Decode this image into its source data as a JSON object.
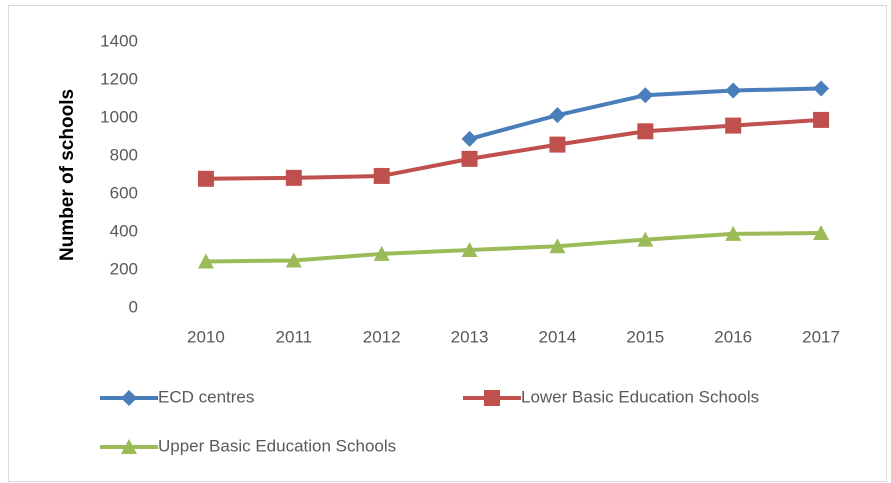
{
  "chart_data": {
    "type": "line",
    "y_label": "Number of schools",
    "categories": [
      "2010",
      "2011",
      "2012",
      "2013",
      "2014",
      "2015",
      "2016",
      "2017"
    ],
    "series": [
      {
        "name": "ECD centres",
        "color": "#4a7ebb",
        "marker": "diamond",
        "values": [
          null,
          null,
          null,
          890,
          1015,
          1120,
          1145,
          1155
        ]
      },
      {
        "name": "Lower Basic Education Schools",
        "color": "#c0504d",
        "marker": "square",
        "values": [
          680,
          685,
          695,
          785,
          860,
          930,
          960,
          990
        ]
      },
      {
        "name": "Upper Basic Education Schools",
        "color": "#9bbb59",
        "marker": "triangle",
        "values": [
          245,
          250,
          285,
          305,
          325,
          360,
          390,
          395
        ]
      }
    ],
    "ylim": [
      0,
      1400
    ],
    "yticks": [
      0,
      200,
      400,
      600,
      800,
      1000,
      1200,
      1400
    ],
    "grid": false
  }
}
